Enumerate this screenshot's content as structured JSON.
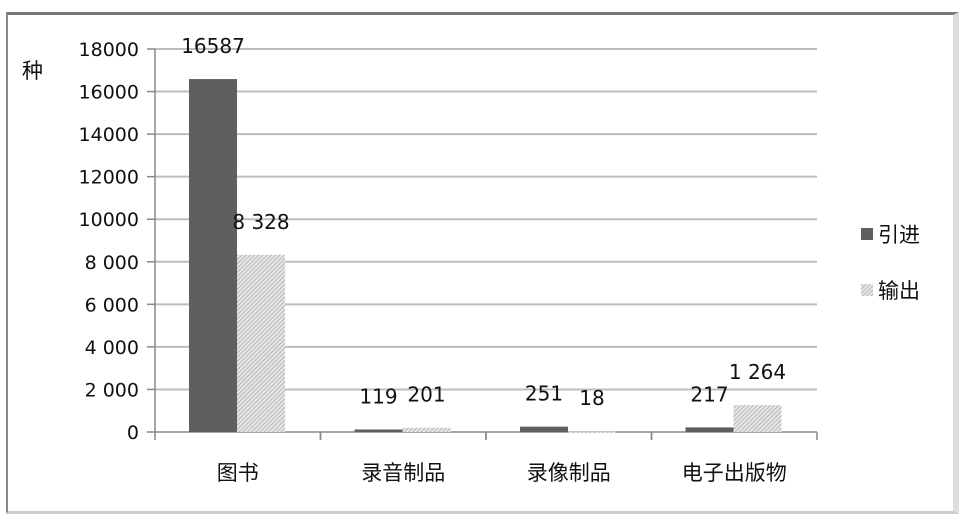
{
  "chart_data": {
    "type": "bar",
    "title": "",
    "ylabel": "种",
    "xlabel": "",
    "ylim": [
      0,
      18000
    ],
    "grid": true,
    "legend_position": "right",
    "yticks": [
      "0",
      "2 000",
      "4 000",
      "6 000",
      "8 000",
      "10000",
      "12000",
      "14000",
      "16000",
      "18000"
    ],
    "ytick_values": [
      0,
      2000,
      4000,
      6000,
      8000,
      10000,
      12000,
      14000,
      16000,
      18000
    ],
    "categories": [
      "图书",
      "录音制品",
      "录像制品",
      "电子出版物"
    ],
    "series": [
      {
        "name": "引进",
        "values": [
          16587,
          119,
          251,
          217
        ],
        "labels": [
          "16587",
          "119",
          "251",
          "217"
        ],
        "color": "#5f5f5f",
        "pattern": "solid"
      },
      {
        "name": "输出",
        "values": [
          8328,
          201,
          18,
          1264
        ],
        "labels": [
          "8 328",
          "201",
          "18",
          "1 264"
        ],
        "color": "#c8c8c8",
        "pattern": "hatched"
      }
    ]
  }
}
